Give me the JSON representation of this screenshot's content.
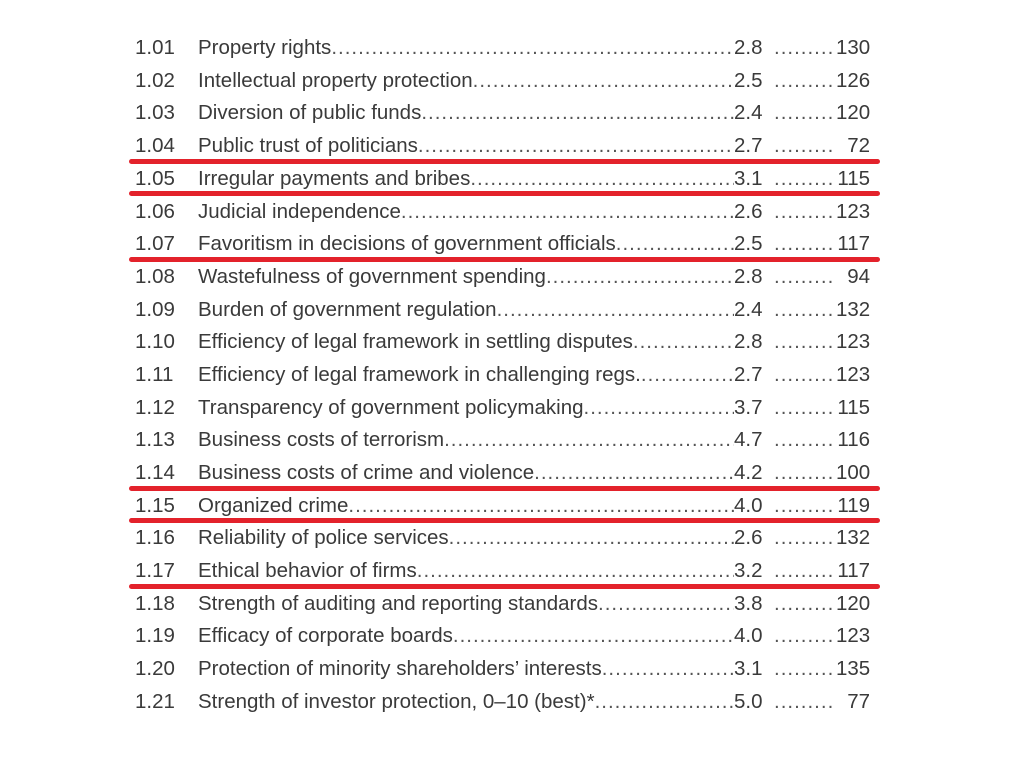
{
  "table": {
    "rows": [
      {
        "num": "1.01",
        "label": "Property rights",
        "score": "2.8",
        "rank": "130",
        "highlighted": false
      },
      {
        "num": "1.02",
        "label": "Intellectual property protection",
        "score": "2.5",
        "rank": "126",
        "highlighted": false
      },
      {
        "num": "1.03",
        "label": "Diversion of public funds",
        "score": "2.4",
        "rank": "120",
        "highlighted": false
      },
      {
        "num": "1.04",
        "label": "Public trust of politicians",
        "score": "2.7",
        "rank": "72",
        "highlighted": true
      },
      {
        "num": "1.05",
        "label": "Irregular payments and bribes",
        "score": "3.1",
        "rank": "115",
        "highlighted": true
      },
      {
        "num": "1.06",
        "label": "Judicial independence",
        "score": "2.6",
        "rank": "123",
        "highlighted": false
      },
      {
        "num": "1.07",
        "label": "Favoritism in decisions of government officials",
        "score": "2.5",
        "rank": "117",
        "highlighted": true
      },
      {
        "num": "1.08",
        "label": "Wastefulness of government spending",
        "score": "2.8",
        "rank": "94",
        "highlighted": false
      },
      {
        "num": "1.09",
        "label": "Burden of government regulation",
        "score": "2.4",
        "rank": "132",
        "highlighted": false
      },
      {
        "num": "1.10",
        "label": "Efficiency of legal framework in settling disputes",
        "score": "2.8",
        "rank": "123",
        "highlighted": false
      },
      {
        "num": "1.11",
        "label": "Efficiency of legal framework in challenging regs.",
        "score": "2.7",
        "rank": "123",
        "highlighted": false
      },
      {
        "num": "1.12",
        "label": "Transparency of government policymaking",
        "score": "3.7",
        "rank": "115",
        "highlighted": false
      },
      {
        "num": "1.13",
        "label": "Business costs of terrorism",
        "score": "4.7",
        "rank": "116",
        "highlighted": false
      },
      {
        "num": "1.14",
        "label": "Business costs of crime and violence",
        "score": "4.2",
        "rank": "100",
        "highlighted": true
      },
      {
        "num": "1.15",
        "label": "Organized crime",
        "score": "4.0",
        "rank": "119",
        "highlighted": true
      },
      {
        "num": "1.16",
        "label": "Reliability of police services",
        "score": "2.6",
        "rank": "132",
        "highlighted": false
      },
      {
        "num": "1.17",
        "label": "Ethical behavior of firms",
        "score": "3.2",
        "rank": "117",
        "highlighted": true
      },
      {
        "num": "1.18",
        "label": "Strength of auditing and reporting standards",
        "score": "3.8",
        "rank": "120",
        "highlighted": false
      },
      {
        "num": "1.19",
        "label": "Efficacy of corporate boards",
        "score": "4.0",
        "rank": "123",
        "highlighted": false
      },
      {
        "num": "1.20",
        "label": "Protection of minority shareholders’ interests",
        "score": "3.1",
        "rank": "135",
        "highlighted": false
      },
      {
        "num": "1.21",
        "label": "Strength of investor protection, 0–10 (best)*",
        "score": "5.0",
        "rank": "77",
        "highlighted": false
      }
    ]
  },
  "colors": {
    "text": "#3a3a3a",
    "highlight_line": "#e3222b",
    "background": "#ffffff"
  }
}
